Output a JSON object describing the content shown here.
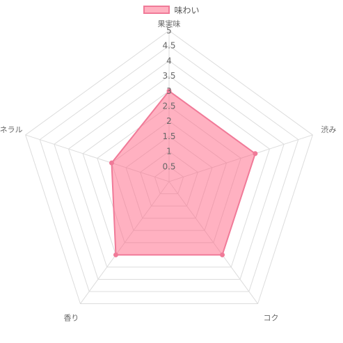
{
  "chart_data": {
    "type": "radar",
    "legend_position": "top",
    "grid": true,
    "r_min": 0,
    "r_max": 5,
    "tick_step": 0.5,
    "tick_labels": [
      "0.5",
      "1",
      "1.5",
      "2",
      "2.5",
      "3",
      "3.5",
      "4",
      "4.5",
      "5"
    ],
    "categories": [
      "果実味",
      "渋み",
      "コク",
      "香り",
      "ミネラル"
    ],
    "series": [
      {
        "name": "味わい",
        "values": [
          3,
          3,
          3,
          3,
          2
        ],
        "color": "#f07a98",
        "fill": "rgba(255,99,132,0.5)"
      }
    ]
  }
}
